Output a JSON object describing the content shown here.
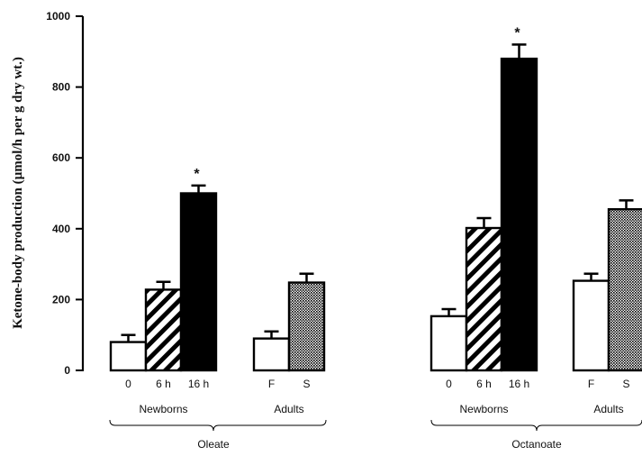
{
  "chart_data": {
    "type": "bar",
    "title": "",
    "xlabel": "",
    "ylabel": "Ketone-body production (µmol/h per g dry wt.)",
    "ylim": [
      0,
      1000
    ],
    "yticks": [
      "0",
      "200",
      "400",
      "600",
      "800",
      "1000"
    ],
    "grid": false,
    "legend": "none",
    "panels": [
      {
        "name": "Oleate",
        "groups": [
          {
            "name": "Newborns",
            "bars": [
              {
                "label": "0",
                "value": 80,
                "error": 20,
                "fill": "white",
                "significant": false
              },
              {
                "label": "6 h",
                "value": 228,
                "error": 22,
                "fill": "hatched",
                "significant": false
              },
              {
                "label": "16 h",
                "value": 500,
                "error": 22,
                "fill": "black",
                "significant": true
              }
            ]
          },
          {
            "name": "Adults",
            "bars": [
              {
                "label": "F",
                "value": 90,
                "error": 20,
                "fill": "white",
                "significant": false
              },
              {
                "label": "S",
                "value": 248,
                "error": 25,
                "fill": "dotted",
                "significant": false
              }
            ]
          }
        ]
      },
      {
        "name": "Octanoate",
        "groups": [
          {
            "name": "Newborns",
            "bars": [
              {
                "label": "0",
                "value": 153,
                "error": 20,
                "fill": "white",
                "significant": false
              },
              {
                "label": "6 h",
                "value": 402,
                "error": 28,
                "fill": "hatched",
                "significant": false
              },
              {
                "label": "16 h",
                "value": 880,
                "error": 40,
                "fill": "black",
                "significant": true
              }
            ]
          },
          {
            "name": "Adults",
            "bars": [
              {
                "label": "F",
                "value": 253,
                "error": 20,
                "fill": "white",
                "significant": false
              },
              {
                "label": "S",
                "value": 455,
                "error": 25,
                "fill": "dotted",
                "significant": false
              }
            ]
          }
        ]
      }
    ],
    "significance_marker": "*"
  }
}
